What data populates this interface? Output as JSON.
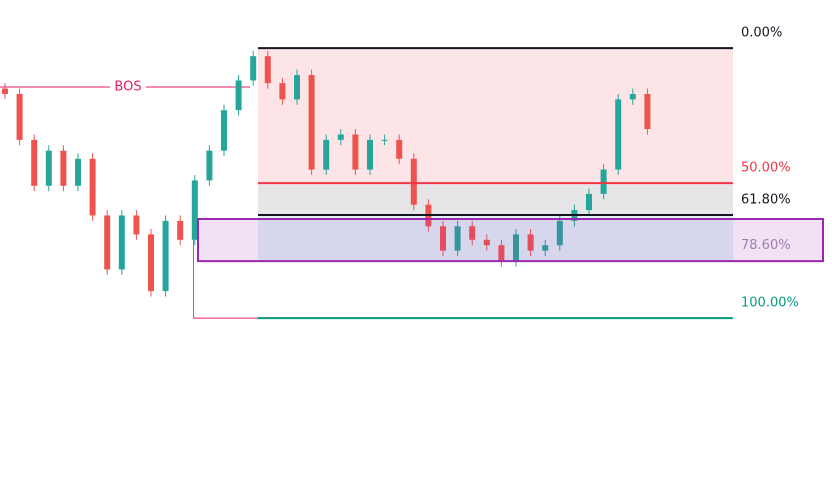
{
  "chart_data": {
    "type": "candlestick",
    "ylim": [
      -17.8,
      164.4
    ],
    "up_color": "#26a69a",
    "down_color": "#ef5350",
    "open": [
      15,
      17,
      34,
      51,
      38,
      51,
      41,
      62,
      82,
      62,
      69,
      90,
      64,
      71,
      49,
      38,
      23,
      12,
      3,
      13,
      19,
      10,
      45,
      34,
      32,
      45,
      34,
      34,
      41,
      58,
      66,
      75,
      66,
      71,
      73,
      79,
      69,
      75,
      73,
      64,
      60,
      54,
      45,
      19,
      17
    ],
    "close": [
      17,
      34,
      51,
      38,
      51,
      41,
      62,
      82,
      62,
      69,
      90,
      64,
      71,
      49,
      38,
      23,
      12,
      3,
      13,
      19,
      10,
      45,
      34,
      32,
      45,
      34,
      34,
      41,
      58,
      66,
      75,
      66,
      71,
      73,
      79,
      69,
      75,
      73,
      64,
      60,
      54,
      45,
      19,
      17,
      30
    ],
    "high": [
      19,
      36,
      53,
      53,
      53,
      53,
      64,
      84,
      84,
      71,
      92,
      92,
      73,
      73,
      51,
      40,
      25,
      14,
      15,
      21,
      21,
      47,
      47,
      36,
      47,
      47,
      36,
      43,
      60,
      68,
      77,
      77,
      73,
      75,
      81,
      81,
      77,
      77,
      75,
      66,
      62,
      56,
      47,
      21,
      32
    ],
    "low": [
      13,
      15,
      32,
      36,
      36,
      39,
      39,
      60,
      60,
      60,
      67,
      62,
      62,
      47,
      36,
      21,
      10,
      1,
      1,
      11,
      8,
      8,
      32,
      30,
      30,
      32,
      32,
      32,
      39,
      56,
      64,
      64,
      64,
      69,
      71,
      67,
      67,
      71,
      62,
      58,
      52,
      43,
      17,
      15,
      15
    ],
    "levels": [
      {
        "value": 0,
        "label": "0.00%",
        "color": "#131722",
        "fill": "#fde4e6"
      },
      {
        "value": 50,
        "label": "50.00%",
        "color": "#f23645",
        "fill": "#e6e6e8"
      },
      {
        "value": 61.8,
        "label": "61.80%",
        "color": "#131722",
        "fill": "#e0f3f6"
      },
      {
        "value": 78.6,
        "label": "78.60%",
        "color": "#a08db0",
        "line": false
      },
      {
        "value": 100,
        "label": "100.00%",
        "color": "#089981"
      }
    ],
    "zone": {
      "top": 63.3,
      "bottom": 78.9,
      "fill": "rgba(156,39,176,0.14)",
      "color": "#9c27b0"
    },
    "bos": {
      "label": "BOS",
      "value": 14.4,
      "color": "#e91e63"
    }
  }
}
